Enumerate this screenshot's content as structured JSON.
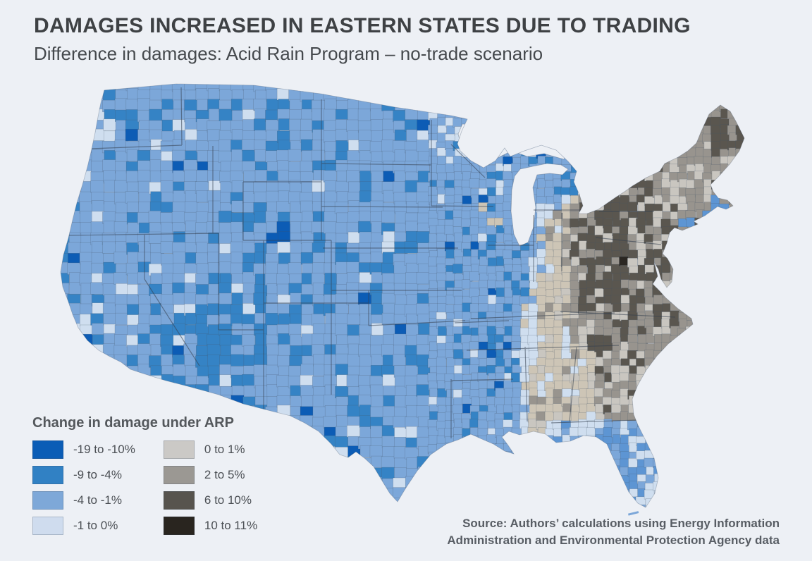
{
  "page": {
    "background": "#edf0f5"
  },
  "header": {
    "title": "DAMAGES INCREASED IN EASTERN STATES DUE TO TRADING",
    "subtitle": "Difference in damages: Acid Rain Program – no-trade scenario"
  },
  "legend": {
    "title": "Change in damage under ARP",
    "items": [
      {
        "label": "-19 to -10%",
        "color": "#0b5db6"
      },
      {
        "label": "-9 to -4%",
        "color": "#3181c4"
      },
      {
        "label": "-4 to -1%",
        "color": "#7ea8d8"
      },
      {
        "label": "-1 to 0%",
        "color": "#cfdcee"
      },
      {
        "label": "0 to 1%",
        "color": "#cbc9c6"
      },
      {
        "label": "2 to 5%",
        "color": "#9b9893"
      },
      {
        "label": "6 to 10%",
        "color": "#57544e"
      },
      {
        "label": "10 to 11%",
        "color": "#29251f"
      }
    ]
  },
  "source": {
    "line1": "Source: Authors’ calculations using Energy Information",
    "line2": "Administration and Environmental Protection Agency data"
  },
  "map": {
    "county_border": "rgba(68,84,102,0.38)",
    "state_border": "rgba(52,64,78,0.55)",
    "palette": {
      "west_dark": "#0c5cb5",
      "west_med": "#3583c5",
      "west_base": "#7ca7d9",
      "pale": "#cfdeef",
      "coastal_blue": "#5d95d3",
      "beige": "#cdc5b6",
      "light_gray": "#c9c6c0",
      "mid_gray": "#98948e",
      "dark_gray": "#5a564f",
      "black": "#2b2722",
      "lake": "#edf0f5"
    }
  },
  "chart_data": {
    "type": "choropleth",
    "geography": "Contiguous United States, county level",
    "title": "DAMAGES INCREASED IN EASTERN STATES DUE TO TRADING",
    "subtitle": "Difference in damages: Acid Rain Program – no-trade scenario",
    "legend_title": "Change in damage under ARP",
    "unit": "percent change in damages under the Acid Rain Program vs no-trade scenario",
    "bins": [
      {
        "range": "-19 to -10%",
        "color": "#0b5db6"
      },
      {
        "range": "-9 to -4%",
        "color": "#3181c4"
      },
      {
        "range": "-4 to -1%",
        "color": "#7ea8d8"
      },
      {
        "range": "-1 to 0%",
        "color": "#cfdcee"
      },
      {
        "range": "0 to 1%",
        "color": "#cbc9c6"
      },
      {
        "range": "2 to 5%",
        "color": "#9b9893"
      },
      {
        "range": "6 to 10%",
        "color": "#57544e"
      },
      {
        "range": "10 to 11%",
        "color": "#29251f"
      }
    ],
    "pattern": [
      "Counties west of the Mississippi River are predominantly negative (blue bins): damages fell under ARP, with strongest declines (-9 to -4%) clustered in Nevada, Utah, Arizona and west Texas",
      "Rare darkest-blue counties (-19 to -10%) appear in northwest Colorado and coastal southern California",
      "A pale-blue then beige (0 to 1%) transition band runs along the Mississippi River valley through Minnesota, Iowa/Illinois, Kentucky, Mississippi and Alabama",
      "Counties east of the Mississippi are predominantly positive (gray bins): damages rose under trading",
      "Darkest increases (6 to 10% and 10 to 11%) cluster in Appalachia and the Mid-Atlantic: Pennsylvania, West Virginia, Virginia, eastern Ohio/Kentucky, western North Carolina, upstate New York and interior Maine",
      "Scattered negative (blue) counties also appear in Michigan, Wisconsin, coastal Massachusetts, Long Island, coastal Georgia and most of Florida"
    ],
    "legend_position": "bottom-left",
    "source": "Source: Authors’ calculations using Energy Information Administration and Environmental Protection Agency data"
  }
}
